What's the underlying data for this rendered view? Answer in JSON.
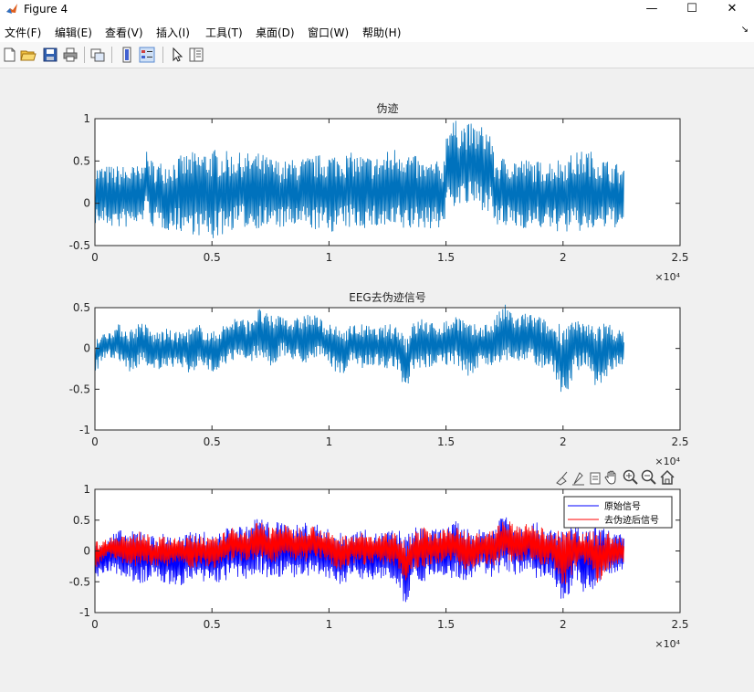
{
  "window": {
    "title": "Figure 4",
    "minimize": "—",
    "maximize": "☐",
    "close": "✕"
  },
  "menu": [
    "文件(F)",
    "编辑(E)",
    "查看(V)",
    "插入(I)",
    "工具(T)",
    "桌面(D)",
    "窗口(W)",
    "帮助(H)"
  ],
  "menu_dock": "↘",
  "toolbar": [
    "new-figure-icon",
    "open-icon",
    "save-icon",
    "print-icon",
    "link-plot-icon",
    "colorbar-icon",
    "legend-icon",
    "pointer-icon",
    "property-inspector-icon"
  ],
  "axes_toolbar": [
    "brush-icon",
    "data-tips-icon",
    "rotate-icon",
    "pan-icon",
    "zoom-in-icon",
    "zoom-out-icon",
    "home-icon"
  ],
  "colors": {
    "line_blue": "#0072bd",
    "orig_blue": "#0000ff",
    "clean_red": "#ff0000"
  },
  "chart_data": [
    {
      "type": "line",
      "title": "伪迹",
      "xlim": [
        0,
        25000
      ],
      "ylim": [
        -0.5,
        1
      ],
      "xticks": [
        0,
        5000,
        10000,
        15000,
        20000,
        25000
      ],
      "xtick_labels": [
        "0",
        "0.5",
        "1",
        "1.5",
        "2",
        "2.5"
      ],
      "yticks": [
        -0.5,
        0,
        0.5,
        1
      ],
      "ytick_labels": [
        "-0.5",
        "0",
        "0.5",
        "1"
      ],
      "x_exponent": "×10⁴",
      "series": [
        {
          "color": "#0072bd",
          "x": [
            0,
            1000,
            2000,
            2100,
            2500,
            3000,
            4000,
            5000,
            6000,
            7000,
            8000,
            9000,
            10000,
            11000,
            12000,
            13000,
            14000,
            14900,
            15050,
            16000,
            16900,
            17050,
            18000,
            19000,
            20000,
            21000,
            22000,
            22600
          ],
          "min": [
            -0.25,
            -0.3,
            -0.28,
            -0.1,
            -0.3,
            -0.32,
            -0.35,
            -0.45,
            -0.3,
            -0.3,
            -0.3,
            -0.3,
            -0.35,
            -0.3,
            -0.3,
            -0.35,
            -0.3,
            -0.3,
            -0.05,
            -0.05,
            -0.1,
            -0.3,
            -0.3,
            -0.3,
            -0.35,
            -0.35,
            -0.3,
            -0.28
          ],
          "max": [
            0.45,
            0.45,
            0.45,
            0.65,
            0.5,
            0.5,
            0.6,
            0.65,
            0.6,
            0.6,
            0.5,
            0.55,
            0.6,
            0.6,
            0.55,
            0.7,
            0.5,
            0.5,
            1.0,
            0.95,
            0.9,
            0.55,
            0.55,
            0.5,
            0.55,
            0.65,
            0.5,
            0.45
          ]
        }
      ]
    },
    {
      "type": "line",
      "title": "EEG去伪迹信号",
      "xlim": [
        0,
        25000
      ],
      "ylim": [
        -1,
        0.5
      ],
      "xticks": [
        0,
        5000,
        10000,
        15000,
        20000,
        25000
      ],
      "xtick_labels": [
        "0",
        "0.5",
        "1",
        "1.5",
        "2",
        "2.5"
      ],
      "yticks": [
        -1,
        -0.5,
        0,
        0.5
      ],
      "ytick_labels": [
        "-1",
        "-0.5",
        "0",
        "0.5"
      ],
      "x_exponent": "×10⁴",
      "series": [
        {
          "color": "#0072bd",
          "x": [
            0,
            500,
            1000,
            1500,
            2000,
            2500,
            3000,
            3500,
            4000,
            4500,
            5000,
            5500,
            6000,
            6500,
            7000,
            7500,
            8000,
            8500,
            9000,
            9500,
            10000,
            10500,
            11000,
            11500,
            12000,
            12500,
            13000,
            13300,
            13500,
            14000,
            14500,
            15000,
            15500,
            16000,
            16500,
            17000,
            17500,
            18000,
            18500,
            19000,
            19500,
            20000,
            20500,
            21000,
            21500,
            22000,
            22600
          ],
          "min": [
            -0.3,
            -0.1,
            -0.15,
            -0.3,
            -0.2,
            -0.25,
            -0.3,
            -0.2,
            -0.3,
            -0.25,
            -0.3,
            -0.2,
            -0.15,
            -0.2,
            -0.1,
            -0.25,
            -0.1,
            -0.15,
            -0.2,
            -0.1,
            -0.2,
            -0.35,
            -0.2,
            -0.25,
            -0.2,
            -0.25,
            -0.3,
            -0.7,
            -0.3,
            -0.3,
            -0.2,
            -0.2,
            -0.25,
            -0.35,
            -0.2,
            -0.25,
            -0.15,
            -0.2,
            -0.15,
            -0.25,
            -0.2,
            -0.65,
            -0.3,
            -0.2,
            -0.55,
            -0.3,
            -0.2
          ],
          "max": [
            0.15,
            0.2,
            0.3,
            0.25,
            0.35,
            0.2,
            0.25,
            0.2,
            0.25,
            0.3,
            0.2,
            0.3,
            0.4,
            0.35,
            0.5,
            0.4,
            0.45,
            0.35,
            0.45,
            0.4,
            0.3,
            0.25,
            0.3,
            0.3,
            0.25,
            0.3,
            0.3,
            0.2,
            0.3,
            0.4,
            0.3,
            0.35,
            0.45,
            0.3,
            0.3,
            0.35,
            0.55,
            0.4,
            0.45,
            0.4,
            0.3,
            0.35,
            0.35,
            0.3,
            0.35,
            0.3,
            0.2
          ]
        }
      ]
    },
    {
      "type": "line",
      "xlim": [
        0,
        25000
      ],
      "ylim": [
        -1,
        1
      ],
      "xticks": [
        0,
        5000,
        10000,
        15000,
        20000,
        25000
      ],
      "xtick_labels": [
        "0",
        "0.5",
        "1",
        "1.5",
        "2",
        "2.5"
      ],
      "yticks": [
        -1,
        -0.5,
        0,
        0.5,
        1
      ],
      "ytick_labels": [
        "-1",
        "-0.5",
        "0",
        "0.5",
        "1"
      ],
      "x_exponent": "×10⁴",
      "legend_position": "top-right",
      "series": [
        {
          "name": "原始信号",
          "color": "#0000ff",
          "x": [
            0,
            500,
            1000,
            1500,
            2000,
            2500,
            3000,
            3500,
            4000,
            4500,
            5000,
            5500,
            6000,
            6500,
            7000,
            7500,
            8000,
            8500,
            9000,
            9500,
            10000,
            10500,
            11000,
            11500,
            12000,
            12500,
            13000,
            13300,
            13500,
            14000,
            14500,
            15000,
            15500,
            16000,
            16500,
            17000,
            17500,
            18000,
            18500,
            19000,
            19500,
            20000,
            20500,
            21000,
            21500,
            22000,
            22600
          ],
          "min": [
            -0.5,
            -0.35,
            -0.4,
            -0.5,
            -0.55,
            -0.45,
            -0.55,
            -0.6,
            -0.5,
            -0.55,
            -0.55,
            -0.5,
            -0.45,
            -0.5,
            -0.35,
            -0.5,
            -0.4,
            -0.45,
            -0.5,
            -0.4,
            -0.5,
            -0.55,
            -0.45,
            -0.5,
            -0.45,
            -0.5,
            -0.55,
            -1.0,
            -0.5,
            -0.5,
            -0.45,
            -0.4,
            -0.5,
            -0.5,
            -0.35,
            -0.45,
            -0.3,
            -0.4,
            -0.35,
            -0.5,
            -0.45,
            -1.0,
            -0.45,
            -0.8,
            -0.5,
            -0.45,
            -0.4
          ],
          "max": [
            0.2,
            0.2,
            0.35,
            0.3,
            0.4,
            0.25,
            0.3,
            0.25,
            0.3,
            0.35,
            0.25,
            0.35,
            0.45,
            0.4,
            0.6,
            0.45,
            0.5,
            0.4,
            0.5,
            0.45,
            0.35,
            0.3,
            0.35,
            0.35,
            0.3,
            0.35,
            0.35,
            0.25,
            0.35,
            0.45,
            0.35,
            0.4,
            0.5,
            0.35,
            0.35,
            0.4,
            0.7,
            0.45,
            0.5,
            0.45,
            0.35,
            0.4,
            0.4,
            0.35,
            0.4,
            0.35,
            0.25
          ]
        },
        {
          "name": "去伪迹后信号",
          "color": "#ff0000",
          "x": [
            0,
            500,
            1000,
            1500,
            2000,
            2500,
            3000,
            3500,
            4000,
            4500,
            5000,
            5500,
            6000,
            6500,
            7000,
            7500,
            8000,
            8500,
            9000,
            9500,
            10000,
            10500,
            11000,
            11500,
            12000,
            12500,
            13000,
            13300,
            13500,
            14000,
            14500,
            15000,
            15500,
            16000,
            16500,
            17000,
            17500,
            18000,
            18500,
            19000,
            19500,
            20000,
            20500,
            21000,
            21500,
            22000,
            22600
          ],
          "min": [
            -0.3,
            -0.1,
            -0.15,
            -0.3,
            -0.2,
            -0.25,
            -0.3,
            -0.2,
            -0.3,
            -0.25,
            -0.3,
            -0.2,
            -0.15,
            -0.2,
            -0.1,
            -0.25,
            -0.1,
            -0.15,
            -0.2,
            -0.1,
            -0.2,
            -0.35,
            -0.2,
            -0.25,
            -0.2,
            -0.25,
            -0.3,
            -0.7,
            -0.3,
            -0.3,
            -0.2,
            -0.2,
            -0.25,
            -0.35,
            -0.2,
            -0.25,
            -0.15,
            -0.2,
            -0.15,
            -0.25,
            -0.2,
            -0.65,
            -0.3,
            -0.2,
            -0.55,
            -0.3,
            -0.2
          ],
          "max": [
            0.15,
            0.2,
            0.3,
            0.25,
            0.35,
            0.2,
            0.25,
            0.2,
            0.25,
            0.3,
            0.2,
            0.3,
            0.4,
            0.35,
            0.5,
            0.4,
            0.45,
            0.35,
            0.45,
            0.4,
            0.3,
            0.25,
            0.3,
            0.3,
            0.25,
            0.3,
            0.3,
            0.2,
            0.3,
            0.4,
            0.3,
            0.35,
            0.45,
            0.3,
            0.3,
            0.35,
            0.55,
            0.4,
            0.45,
            0.4,
            0.3,
            0.35,
            0.35,
            0.3,
            0.35,
            0.3,
            0.2
          ]
        }
      ]
    }
  ]
}
